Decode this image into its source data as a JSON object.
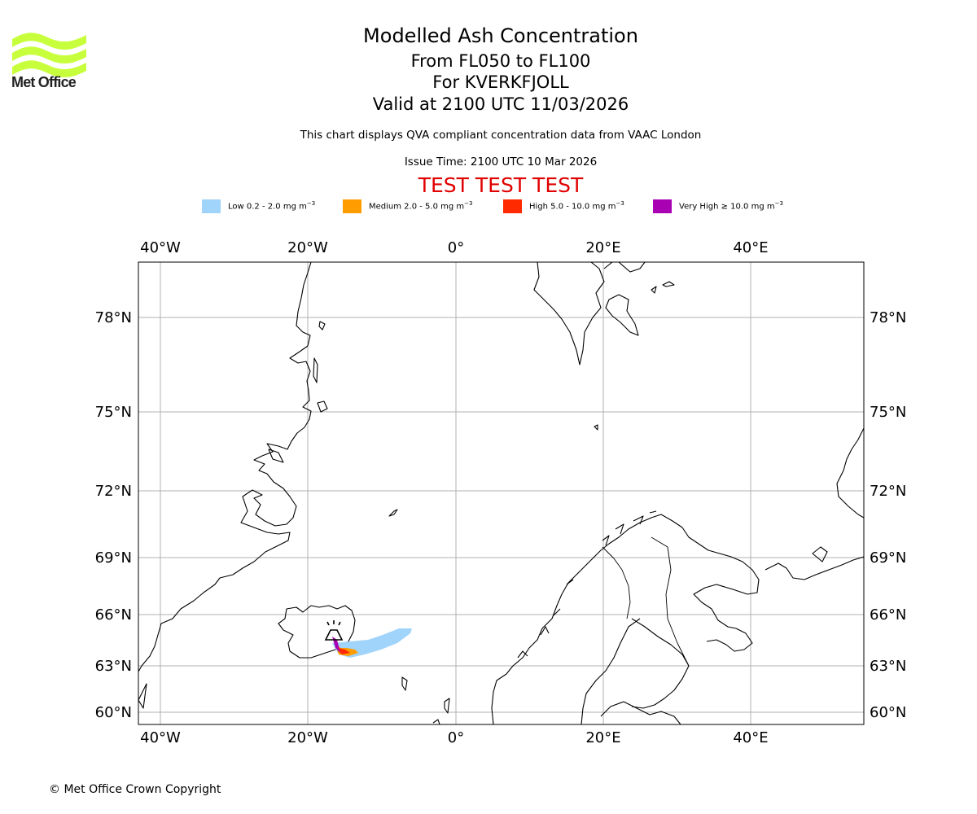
{
  "header": {
    "title": "Modelled Ash Concentration",
    "level": "From FL050 to FL100",
    "volcano": "For KVERKFJOLL",
    "valid": "Valid at 2100 UTC 11/03/2026",
    "qva_note": "This chart displays QVA compliant concentration data from VAAC London",
    "issue_time": "Issue Time: 2100 UTC 10 Mar 2026",
    "test_banner": "TEST TEST TEST"
  },
  "logo": {
    "name": "Met Office",
    "color": "#c8ff3c"
  },
  "legend": {
    "items": [
      {
        "label": "Low 0.2 - 2.0 mg m",
        "color": "#a0d4fa"
      },
      {
        "label": "Medium 2.0 - 5.0 mg m",
        "color": "#ff9d00"
      },
      {
        "label": "High 5.0 - 10.0 mg m",
        "color": "#ff2a00"
      },
      {
        "label": "Very High ≥ 10.0 mg m",
        "color": "#aa00b4"
      }
    ],
    "unit_exponent": "−3"
  },
  "map": {
    "lon_labels": [
      "40°W",
      "20°W",
      "0°",
      "20°E",
      "40°E"
    ],
    "lat_labels": [
      "78°N",
      "75°N",
      "72°N",
      "69°N",
      "66°N",
      "63°N",
      "60°N"
    ],
    "volcano_symbol": "volcano-symbol"
  },
  "footer": {
    "copyright": "© Met Office Crown Copyright"
  }
}
